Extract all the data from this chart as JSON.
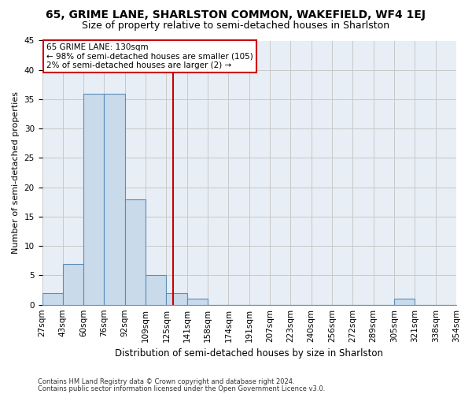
{
  "title1": "65, GRIME LANE, SHARLSTON COMMON, WAKEFIELD, WF4 1EJ",
  "title2": "Size of property relative to semi-detached houses in Sharlston",
  "xlabel": "Distribution of semi-detached houses by size in Sharlston",
  "ylabel": "Number of semi-detached properties",
  "bin_labels": [
    "27sqm",
    "43sqm",
    "60sqm",
    "76sqm",
    "92sqm",
    "109sqm",
    "125sqm",
    "141sqm",
    "158sqm",
    "174sqm",
    "191sqm",
    "207sqm",
    "223sqm",
    "240sqm",
    "256sqm",
    "272sqm",
    "289sqm",
    "305sqm",
    "321sqm",
    "338sqm",
    "354sqm"
  ],
  "bar_values": [
    2,
    7,
    36,
    36,
    18,
    5,
    2,
    1,
    0,
    0,
    0,
    0,
    0,
    0,
    0,
    0,
    0,
    1,
    0,
    0
  ],
  "bar_color": "#c9daea",
  "bar_edge_color": "#5b8db8",
  "grid_color": "#c8c8c8",
  "background_color": "#e8eef5",
  "vline_color": "#cc0000",
  "annotation_line1": "65 GRIME LANE: 130sqm",
  "annotation_line2": "← 98% of semi-detached houses are smaller (105)",
  "annotation_line3": "2% of semi-detached houses are larger (2) →",
  "annotation_box_color": "#ffffff",
  "annotation_box_edge": "#cc0000",
  "ylim": [
    0,
    45
  ],
  "yticks": [
    0,
    5,
    10,
    15,
    20,
    25,
    30,
    35,
    40,
    45
  ],
  "footnote1": "Contains HM Land Registry data © Crown copyright and database right 2024.",
  "footnote2": "Contains public sector information licensed under the Open Government Licence v3.0.",
  "title1_fontsize": 10,
  "title2_fontsize": 9,
  "xlabel_fontsize": 8.5,
  "ylabel_fontsize": 8,
  "tick_fontsize": 7.5,
  "annotation_fontsize": 7.5,
  "footnote_fontsize": 6
}
